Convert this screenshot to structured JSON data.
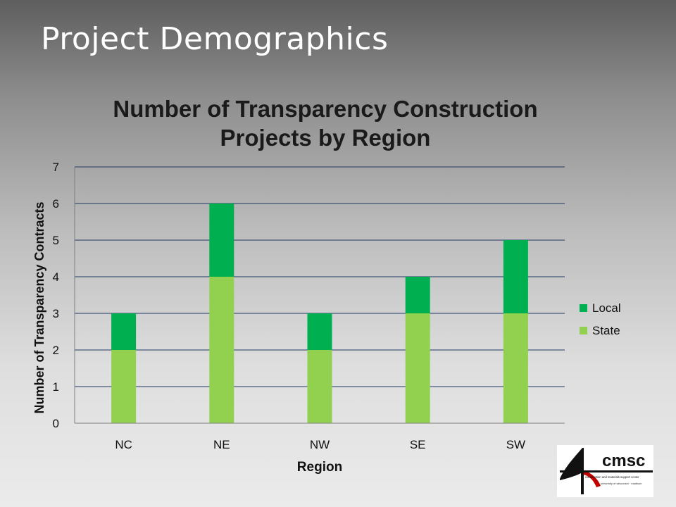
{
  "slide": {
    "title": "Project Demographics"
  },
  "logo": {
    "text": "cmsc",
    "subtitle": "construction and materials support center",
    "university": "university of wisconsin · madison"
  },
  "chart_data": {
    "type": "bar",
    "stacked": true,
    "title_lines": [
      "Number of Transparency Construction",
      "Projects by Region"
    ],
    "xlabel": "Region",
    "ylabel": "Number of Transparency Contracts",
    "categories": [
      "NC",
      "NE",
      "NW",
      "SE",
      "SW"
    ],
    "series": [
      {
        "name": "State",
        "values": [
          2,
          4,
          2,
          3,
          3
        ],
        "color": "#92d050"
      },
      {
        "name": "Local",
        "values": [
          1,
          2,
          1,
          1,
          2
        ],
        "color": "#00b050"
      }
    ],
    "ylim": [
      0,
      7
    ],
    "yticks": [
      "0",
      "1",
      "2",
      "3",
      "4",
      "5",
      "6",
      "7"
    ],
    "legend_order": [
      "Local",
      "State"
    ],
    "legend_position": "right",
    "grid": true,
    "gridline_color": "#1f3864"
  }
}
